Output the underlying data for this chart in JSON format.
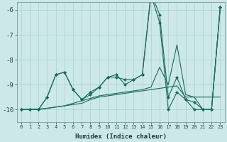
{
  "xlabel": "Humidex (Indice chaleur)",
  "background_color": "#cce8e8",
  "grid_color": "#aad0d0",
  "line_color": "#1a6b5a",
  "xlim": [
    -0.5,
    23.5
  ],
  "ylim": [
    -10.5,
    -5.7
  ],
  "yticks": [
    -10,
    -9,
    -8,
    -7,
    -6
  ],
  "xticks": [
    0,
    1,
    2,
    3,
    4,
    5,
    6,
    7,
    8,
    9,
    10,
    11,
    12,
    13,
    14,
    15,
    16,
    17,
    18,
    19,
    20,
    21,
    22,
    23
  ],
  "series_zigzag1": [
    -10.0,
    -10.0,
    -10.0,
    -9.5,
    -8.6,
    -8.5,
    -9.2,
    -9.6,
    -9.3,
    -9.1,
    -8.7,
    -8.6,
    -9.0,
    -8.8,
    -8.6,
    -5.4,
    -6.5,
    -10.0,
    -9.3,
    -9.6,
    -10.0,
    -10.0,
    -10.0,
    -5.9
  ],
  "series_zigzag2": [
    -10.0,
    -10.0,
    -10.0,
    -9.5,
    -8.6,
    -8.5,
    -9.2,
    -9.6,
    -9.4,
    -9.1,
    -8.7,
    -8.7,
    -8.8,
    -8.8,
    -8.6,
    -5.3,
    -6.2,
    -9.5,
    -8.7,
    -9.6,
    -9.7,
    -10.0,
    -10.0,
    -5.9
  ],
  "series_diag1": [
    -10.0,
    -10.0,
    -10.0,
    -9.95,
    -9.9,
    -9.85,
    -9.8,
    -9.75,
    -9.6,
    -9.5,
    -9.45,
    -9.4,
    -9.35,
    -9.3,
    -9.25,
    -9.2,
    -9.15,
    -9.1,
    -9.05,
    -9.5,
    -9.5,
    -9.5,
    -9.5,
    -9.5
  ],
  "series_diag2": [
    -10.0,
    -10.0,
    -9.98,
    -9.95,
    -9.9,
    -9.85,
    -9.75,
    -9.65,
    -9.55,
    -9.45,
    -9.4,
    -9.35,
    -9.3,
    -9.25,
    -9.2,
    -9.1,
    -8.3,
    -9.0,
    -7.4,
    -9.4,
    -9.5,
    -10.0,
    -10.0,
    -5.9
  ]
}
